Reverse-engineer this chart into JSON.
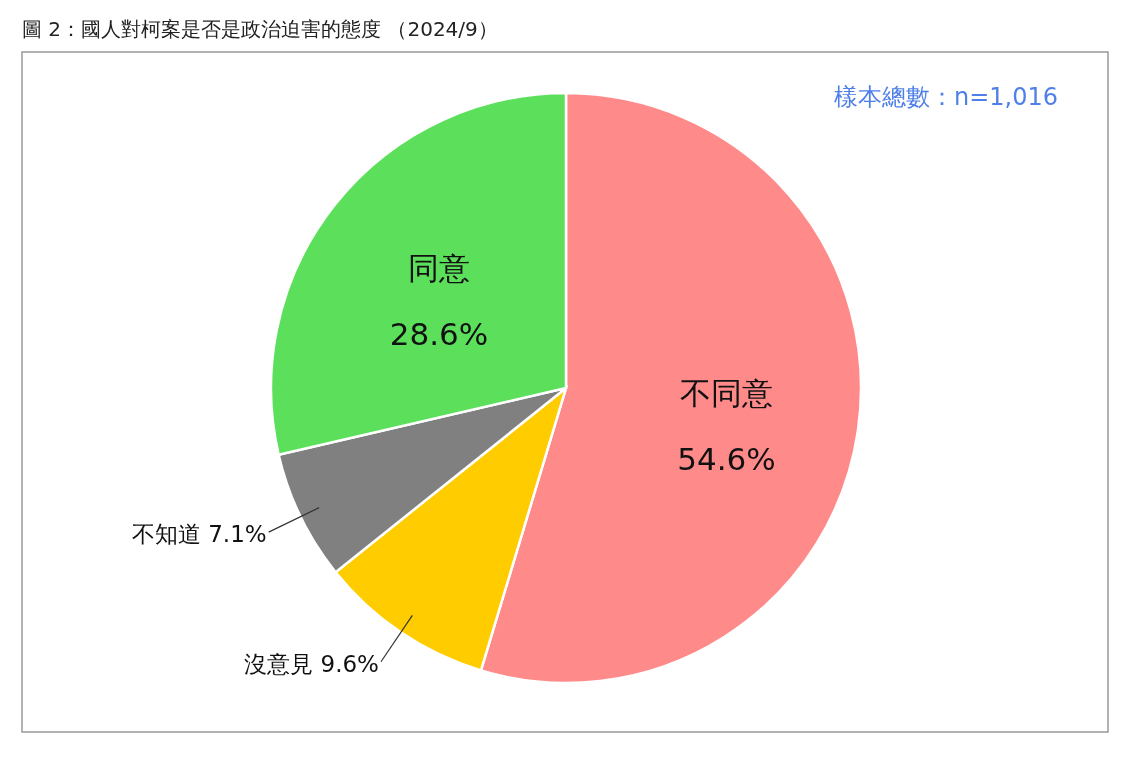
{
  "chart_data": {
    "type": "pie",
    "title": "圖 2：國人對柯案是否是政治迫害的態度 （2024/9）",
    "categories": [
      "不同意",
      "沒意見",
      "不知道",
      "同意"
    ],
    "values": [
      54.6,
      9.6,
      7.1,
      28.6
    ],
    "value_labels": [
      "54.6%",
      "9.6%",
      "7.1%",
      "28.6%"
    ],
    "colors": [
      "#ff8a8a",
      "#ffcc00",
      "#808080",
      "#5ce05c"
    ],
    "annotations": [
      "樣本總數：n=1,016"
    ]
  }
}
